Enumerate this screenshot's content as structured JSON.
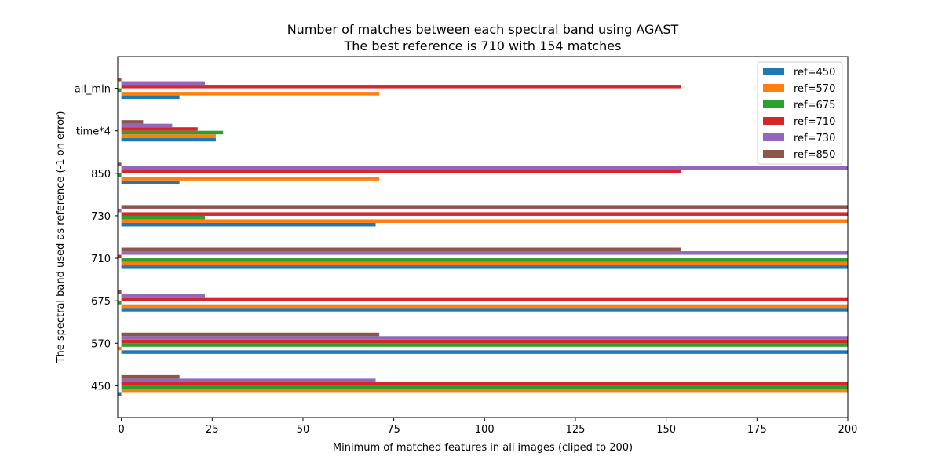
{
  "chart_data": {
    "type": "bar",
    "orientation": "horizontal",
    "title": "Number of matches between each spectral band using AGAST",
    "subtitle": "The best reference is 710 with 154 matches",
    "xlabel": "Minimum of matched features in all images (cliped to 200)",
    "ylabel": "The spectral band used as reference (-1 on error)",
    "xlim": [
      -1,
      200
    ],
    "xticks": [
      0,
      25,
      50,
      75,
      100,
      125,
      150,
      175,
      200
    ],
    "categories": [
      "450",
      "570",
      "675",
      "710",
      "730",
      "850",
      "time*4",
      "all_min"
    ],
    "legend_position": "top-right",
    "grid": false,
    "series": [
      {
        "name": "ref=450",
        "color": "#1f77b4",
        "values": [
          -1,
          200,
          200,
          200,
          70,
          16,
          26,
          16
        ]
      },
      {
        "name": "ref=570",
        "color": "#ff7f0e",
        "values": [
          200,
          -1,
          200,
          200,
          200,
          71,
          26,
          71
        ]
      },
      {
        "name": "ref=675",
        "color": "#2ca02c",
        "values": [
          200,
          200,
          -1,
          200,
          23,
          -1,
          28,
          -1
        ]
      },
      {
        "name": "ref=710",
        "color": "#d62728",
        "values": [
          200,
          200,
          200,
          -1,
          200,
          154,
          21,
          154
        ]
      },
      {
        "name": "ref=730",
        "color": "#9467bd",
        "values": [
          70,
          200,
          23,
          200,
          -1,
          200,
          14,
          23
        ]
      },
      {
        "name": "ref=850",
        "color": "#8c564b",
        "values": [
          16,
          71,
          -1,
          154,
          200,
          -1,
          6,
          -1
        ]
      }
    ]
  }
}
